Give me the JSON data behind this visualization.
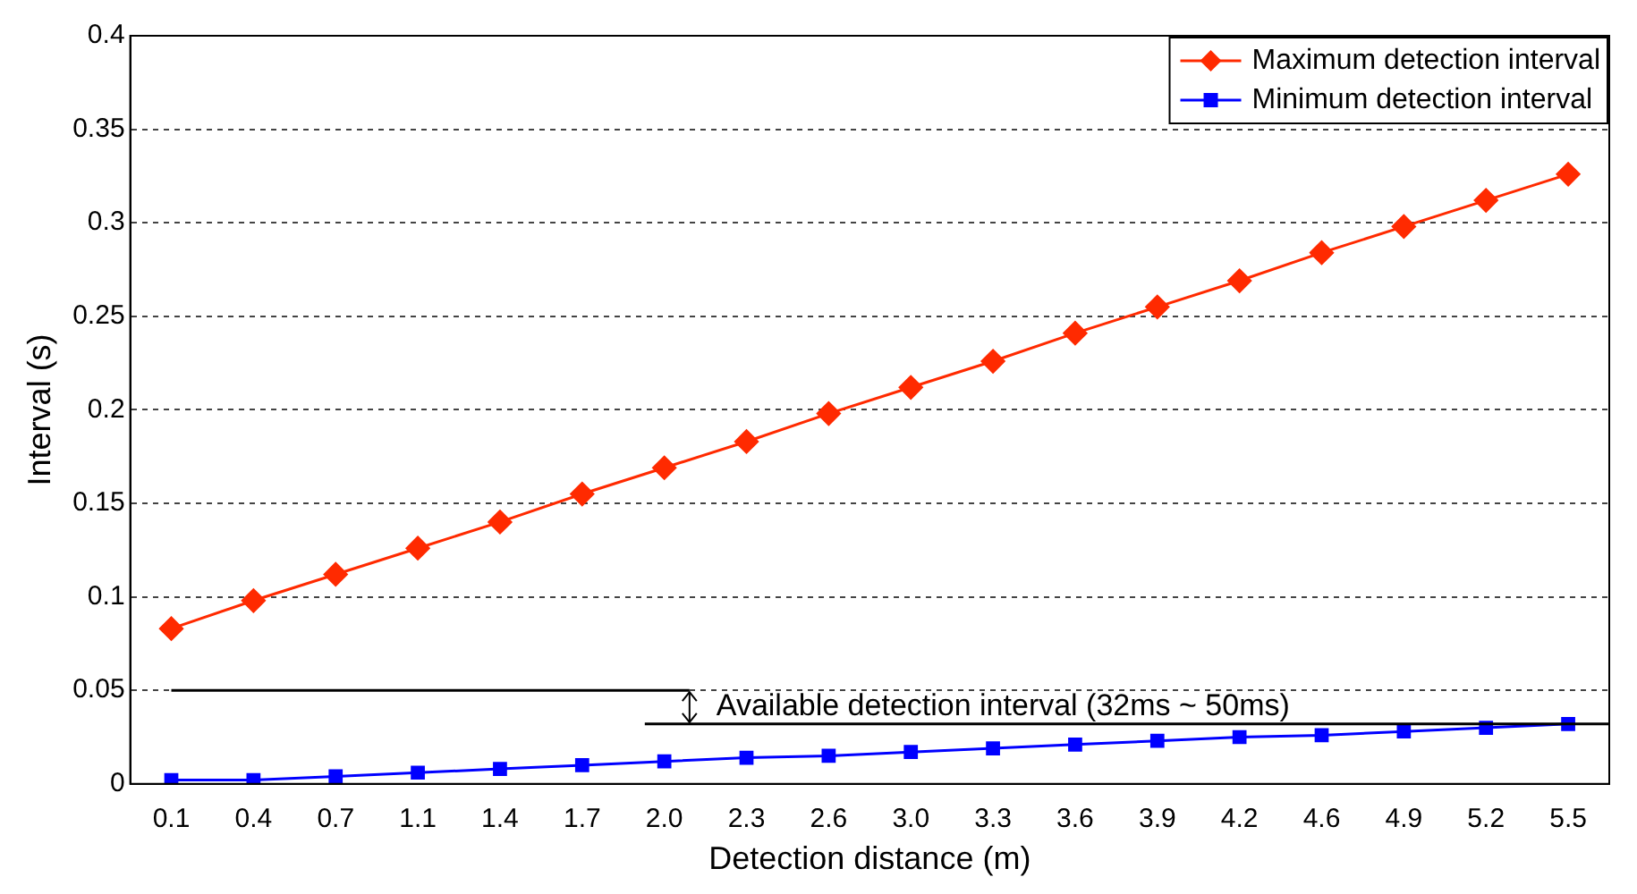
{
  "chart_data": {
    "type": "line",
    "xlabel": "Detection distance (m)",
    "ylabel": "Interval (s)",
    "categories": [
      "0.1",
      "0.4",
      "0.7",
      "1.1",
      "1.4",
      "1.7",
      "2.0",
      "2.3",
      "2.6",
      "3.0",
      "3.3",
      "3.6",
      "3.9",
      "4.2",
      "4.6",
      "4.9",
      "5.2",
      "5.5"
    ],
    "series": [
      {
        "name": "Maximum detection interval",
        "color": "#ff2a00",
        "marker": "diamond",
        "values": [
          0.083,
          0.098,
          0.112,
          0.126,
          0.14,
          0.155,
          0.169,
          0.183,
          0.198,
          0.212,
          0.226,
          0.241,
          0.255,
          0.269,
          0.284,
          0.298,
          0.312,
          0.326
        ]
      },
      {
        "name": "Minimum detection interval",
        "color": "#0000ff",
        "marker": "square",
        "values": [
          0.002,
          0.002,
          0.004,
          0.006,
          0.008,
          0.01,
          0.012,
          0.014,
          0.015,
          0.017,
          0.019,
          0.021,
          0.023,
          0.025,
          0.026,
          0.028,
          0.03,
          0.032
        ]
      }
    ],
    "ylim": [
      0,
      0.4
    ],
    "yticks": [
      0,
      0.05,
      0.1,
      0.15,
      0.2,
      0.25,
      0.3,
      0.35,
      0.4
    ],
    "ref_lines": [
      {
        "axis": "y",
        "value": 0.05,
        "color": "#000000"
      },
      {
        "axis": "y",
        "value": 0.032,
        "color": "#000000"
      }
    ],
    "annotations": [
      "Available detection interval (32ms ~ 50ms)"
    ],
    "grid": "y",
    "legend": "top right",
    "line_style": "solid"
  }
}
